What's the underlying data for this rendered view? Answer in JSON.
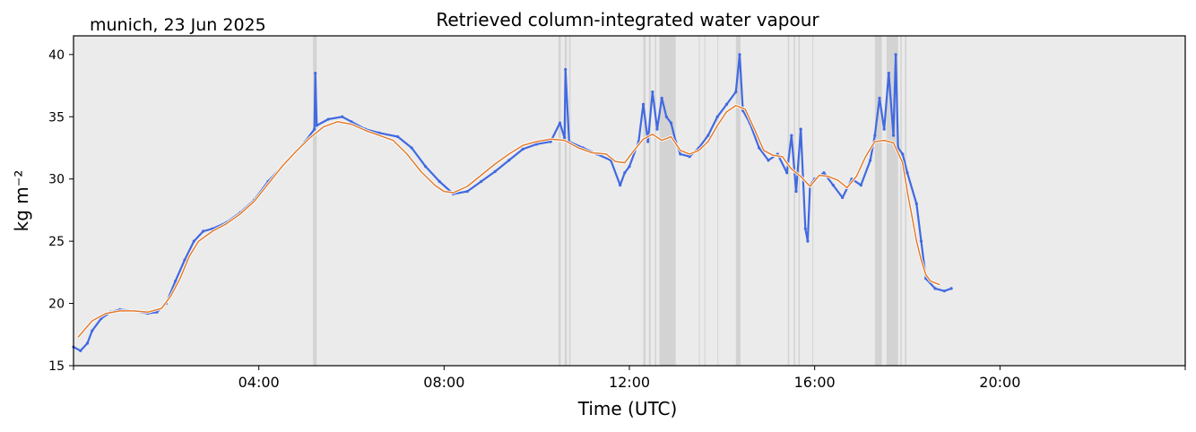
{
  "header": {
    "location_date": "munich, 23 Jun 2025",
    "title": "Retrieved column-integrated water vapour"
  },
  "colors": {
    "background": "#ebebeb",
    "flag_band": "#d3d3d3",
    "raw_series": "#4169e1",
    "smooth_series": "#e07b2e"
  },
  "chart_data": {
    "type": "scatter",
    "title": "Retrieved column-integrated water vapour",
    "xlabel": "Time (UTC)",
    "ylabel": "kg m⁻²",
    "xlim_hours": [
      0,
      24
    ],
    "ylim": [
      15,
      41.5
    ],
    "x_ticks": [
      {
        "hour": 4,
        "label": "04:00"
      },
      {
        "hour": 8,
        "label": "08:00"
      },
      {
        "hour": 12,
        "label": "12:00"
      },
      {
        "hour": 16,
        "label": "16:00"
      },
      {
        "hour": 20,
        "label": "20:00"
      }
    ],
    "y_ticks": [
      15,
      20,
      25,
      30,
      35,
      40
    ],
    "grid": false,
    "flagged_periods_hours": [
      [
        5.17,
        5.25
      ],
      [
        10.47,
        10.52
      ],
      [
        10.6,
        10.65
      ],
      [
        10.7,
        10.73
      ],
      [
        12.3,
        12.35
      ],
      [
        12.42,
        12.46
      ],
      [
        12.55,
        12.58
      ],
      [
        12.65,
        13.0
      ],
      [
        13.5,
        13.52
      ],
      [
        13.62,
        13.64
      ],
      [
        13.9,
        13.92
      ],
      [
        14.3,
        14.4
      ],
      [
        15.42,
        15.45
      ],
      [
        15.55,
        15.58
      ],
      [
        15.65,
        15.68
      ],
      [
        15.95,
        15.97
      ],
      [
        17.3,
        17.45
      ],
      [
        17.55,
        17.8
      ],
      [
        17.85,
        17.88
      ],
      [
        17.95,
        17.98
      ]
    ],
    "series": [
      {
        "name": "retrieved",
        "style": "points",
        "x_hours": [
          0.0,
          0.15,
          0.3,
          0.4,
          0.6,
          0.8,
          1.0,
          1.3,
          1.6,
          1.8,
          2.0,
          2.2,
          2.4,
          2.6,
          2.8,
          3.0,
          3.3,
          3.6,
          3.9,
          4.2,
          4.5,
          4.8,
          5.0,
          5.2,
          5.22,
          5.25,
          5.5,
          5.8,
          6.0,
          6.3,
          6.6,
          7.0,
          7.3,
          7.6,
          7.9,
          8.2,
          8.5,
          8.8,
          9.1,
          9.4,
          9.7,
          10.0,
          10.3,
          10.5,
          10.6,
          10.62,
          10.7,
          11.0,
          11.3,
          11.6,
          11.8,
          11.9,
          12.0,
          12.2,
          12.3,
          12.4,
          12.5,
          12.6,
          12.7,
          12.8,
          12.9,
          13.0,
          13.1,
          13.3,
          13.5,
          13.7,
          13.9,
          14.1,
          14.3,
          14.38,
          14.45,
          14.6,
          14.8,
          15.0,
          15.2,
          15.4,
          15.5,
          15.6,
          15.7,
          15.8,
          15.85,
          15.9,
          16.0,
          16.2,
          16.4,
          16.6,
          16.8,
          17.0,
          17.2,
          17.3,
          17.4,
          17.5,
          17.6,
          17.7,
          17.75,
          17.8,
          17.9,
          18.0,
          18.2,
          18.3,
          18.4,
          18.6,
          18.8,
          18.95
        ],
        "y": [
          16.5,
          16.2,
          16.8,
          17.8,
          18.8,
          19.3,
          19.5,
          19.4,
          19.2,
          19.3,
          20.0,
          21.8,
          23.5,
          25.0,
          25.8,
          26.0,
          26.5,
          27.3,
          28.3,
          29.8,
          31.0,
          32.2,
          33.0,
          34.0,
          38.5,
          34.3,
          34.8,
          35.0,
          34.6,
          34.0,
          33.7,
          33.4,
          32.5,
          31.0,
          29.8,
          28.8,
          29.0,
          29.8,
          30.6,
          31.5,
          32.4,
          32.8,
          33.0,
          34.5,
          33.3,
          38.8,
          33.0,
          32.5,
          32.0,
          31.5,
          29.5,
          30.5,
          31.0,
          33.0,
          36.0,
          33.0,
          37.0,
          34.0,
          36.5,
          35.0,
          34.5,
          33.0,
          32.0,
          31.8,
          32.5,
          33.5,
          35.0,
          36.0,
          37.0,
          40.0,
          35.5,
          34.5,
          32.5,
          31.5,
          32.0,
          30.5,
          33.5,
          29.0,
          34.0,
          26.0,
          25.0,
          29.5,
          30.0,
          30.5,
          29.5,
          28.5,
          30.0,
          29.5,
          31.5,
          33.5,
          36.5,
          34.0,
          38.5,
          33.5,
          40.0,
          32.5,
          32.0,
          30.5,
          28.0,
          25.0,
          22.0,
          21.2,
          21.0,
          21.2
        ]
      },
      {
        "name": "smoothed",
        "style": "line",
        "x_hours": [
          0.1,
          0.4,
          0.7,
          1.0,
          1.3,
          1.6,
          1.9,
          2.1,
          2.3,
          2.5,
          2.7,
          3.0,
          3.3,
          3.6,
          3.9,
          4.2,
          4.5,
          4.8,
          5.1,
          5.4,
          5.7,
          6.0,
          6.3,
          6.6,
          6.9,
          7.2,
          7.5,
          7.8,
          8.0,
          8.2,
          8.5,
          8.8,
          9.1,
          9.4,
          9.7,
          10.0,
          10.3,
          10.6,
          10.9,
          11.2,
          11.5,
          11.7,
          11.9,
          12.1,
          12.3,
          12.5,
          12.7,
          12.9,
          13.1,
          13.3,
          13.5,
          13.7,
          13.9,
          14.1,
          14.3,
          14.5,
          14.7,
          14.9,
          15.1,
          15.3,
          15.5,
          15.7,
          15.9,
          16.1,
          16.3,
          16.5,
          16.7,
          16.9,
          17.1,
          17.3,
          17.5,
          17.7,
          17.9,
          18.0,
          18.1,
          18.2,
          18.3,
          18.4,
          18.5,
          18.7
        ],
        "y": [
          17.3,
          18.6,
          19.2,
          19.4,
          19.4,
          19.3,
          19.6,
          20.6,
          22.0,
          23.8,
          25.0,
          25.8,
          26.4,
          27.2,
          28.2,
          29.6,
          31.0,
          32.2,
          33.3,
          34.2,
          34.6,
          34.4,
          33.9,
          33.5,
          33.1,
          32.0,
          30.6,
          29.5,
          29.0,
          28.9,
          29.4,
          30.3,
          31.2,
          32.0,
          32.7,
          33.0,
          33.2,
          33.1,
          32.5,
          32.1,
          32.0,
          31.4,
          31.3,
          32.3,
          33.2,
          33.6,
          33.1,
          33.4,
          32.3,
          32.0,
          32.3,
          33.0,
          34.3,
          35.4,
          35.9,
          35.6,
          34.0,
          32.3,
          31.9,
          31.8,
          30.8,
          30.2,
          29.4,
          30.3,
          30.2,
          29.9,
          29.3,
          30.2,
          31.8,
          33.0,
          33.1,
          32.9,
          31.3,
          29.0,
          27.0,
          25.0,
          23.5,
          22.3,
          21.8,
          21.5
        ]
      }
    ]
  }
}
